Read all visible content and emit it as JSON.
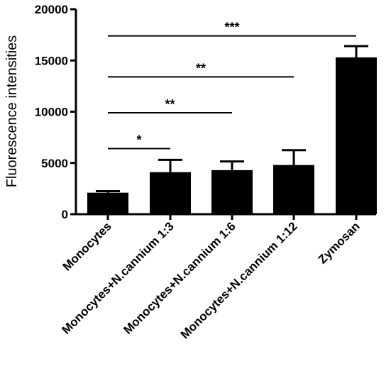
{
  "chart_data": {
    "type": "bar",
    "title": "",
    "xlabel": "",
    "ylabel": "Fluorescence intensities",
    "ylim": [
      0,
      20000
    ],
    "yticks": [
      0,
      5000,
      10000,
      15000,
      20000
    ],
    "categories": [
      "Monocytes",
      "Monocytes+N.cannium 1:3",
      "Monocytes+N.cannium 1:6",
      "Monocytes+N.cannium 1:12",
      "Zymosan"
    ],
    "values": [
      2100,
      4100,
      4300,
      4800,
      15300
    ],
    "errors": [
      150,
      1200,
      850,
      1450,
      1100
    ],
    "bar_color": "#000000",
    "grid": false,
    "significance": [
      {
        "from": 0,
        "to": 1,
        "y": 6400,
        "label": "*"
      },
      {
        "from": 0,
        "to": 2,
        "y": 9900,
        "label": "**"
      },
      {
        "from": 0,
        "to": 3,
        "y": 13400,
        "label": "**"
      },
      {
        "from": 0,
        "to": 4,
        "y": 17400,
        "label": "***"
      }
    ]
  }
}
